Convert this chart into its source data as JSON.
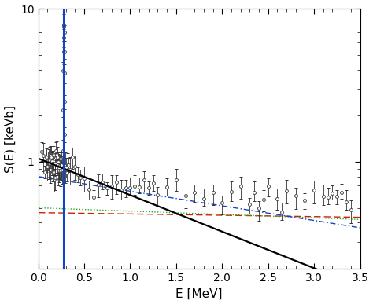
{
  "title": "",
  "xlabel": "E [MeV]",
  "ylabel": "S(E) [keVb]",
  "xlim": [
    0.0,
    3.5
  ],
  "ylim_log": [
    0.2,
    10
  ],
  "background_color": "#ffffff",
  "line_black_color": "#000000",
  "line_blue_color": "#1144cc",
  "line_red_color": "#cc2200",
  "line_green_color": "#22aa22",
  "resonance_x": 0.279,
  "resonance_peak": 9.8,
  "black_A": 1.05,
  "black_alpha": 0.55,
  "blue_A": 0.8,
  "blue_alpha": 0.22,
  "red_A": 0.465,
  "red_alpha": 0.02,
  "green_A": 0.5,
  "green_alpha": 0.05
}
